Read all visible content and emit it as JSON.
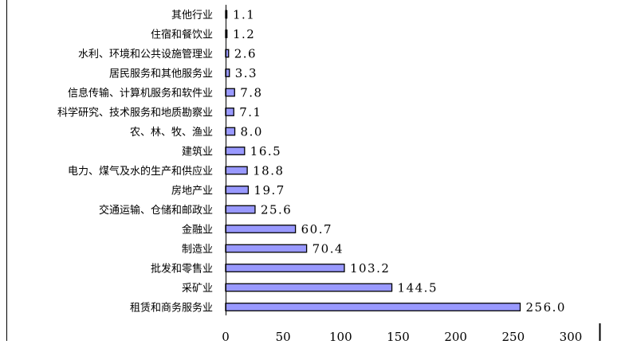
{
  "chart_data": {
    "type": "bar",
    "orientation": "horizontal",
    "categories": [
      "其他行业",
      "住宿和餐饮业",
      "水利、环境和公共设施管理业",
      "居民服务和其他服务业",
      "信息传输、计算机服务和软件业",
      "科学研究、技术服务和地质勘察业",
      "农、林、牧、渔业",
      "建筑业",
      "电力、煤气及水的生产和供应业",
      "房地产业",
      "交通运输、仓储和邮政业",
      "金融业",
      "制造业",
      "批发和零售业",
      "采矿业",
      "租赁和商务服务业"
    ],
    "values": [
      1.1,
      1.2,
      2.6,
      3.3,
      7.8,
      7.1,
      8.0,
      16.5,
      18.8,
      19.7,
      25.6,
      60.7,
      70.4,
      103.2,
      144.5,
      256.0
    ],
    "value_labels": [
      "1.1",
      "1.2",
      "2.6",
      "3.3",
      "7.8",
      "7.1",
      "8.0",
      "16.5",
      "18.8",
      "19.7",
      "25.6",
      "60.7",
      "70.4",
      "103.2",
      "144.5",
      "256.0"
    ],
    "x_ticks": [
      "0",
      "50",
      "100",
      "150",
      "200",
      "250",
      "300"
    ],
    "xlim": [
      0,
      300
    ],
    "title": "",
    "xlabel": "",
    "ylabel": "",
    "grid": false,
    "legend": "none",
    "bar_color": "#9999ff",
    "bar_edge_color": "#000000"
  }
}
